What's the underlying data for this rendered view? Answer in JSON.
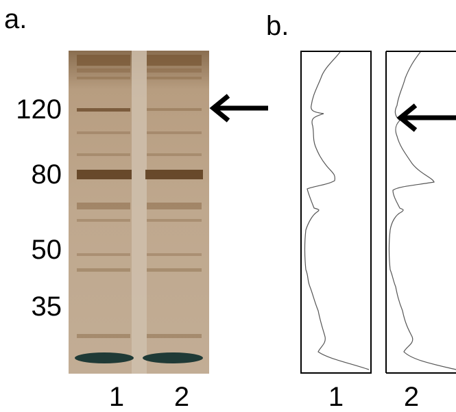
{
  "panel_a": {
    "label": "a.",
    "mw_markers": [
      "120",
      "80",
      "50",
      "35"
    ],
    "lanes": [
      "1",
      "2"
    ]
  },
  "panel_b": {
    "label": "b.",
    "lanes": [
      "1",
      "2"
    ]
  },
  "colors": {
    "gel_background": "#b8a28a",
    "band_dark": "#6b4a2a",
    "dye_front": "#1f3a36",
    "trace_line": "#555555"
  }
}
